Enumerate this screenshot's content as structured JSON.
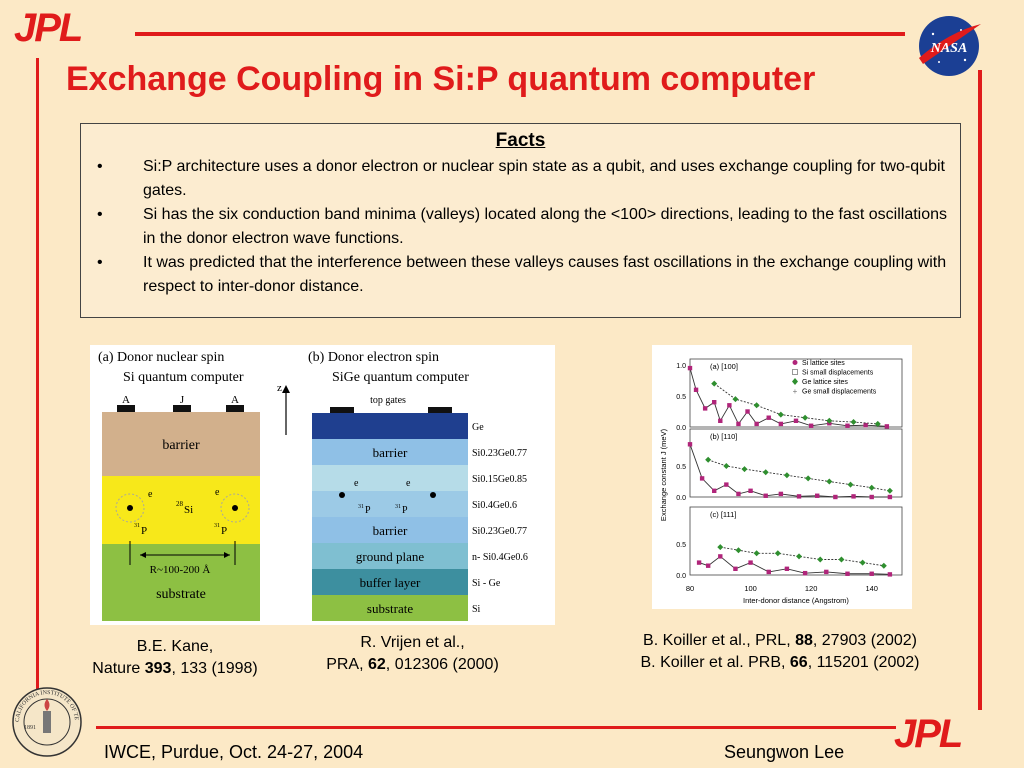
{
  "header": {
    "logo_left": "JPL",
    "logo_right": "NASA",
    "title": "Exchange Coupling in Si:P quantum computer"
  },
  "facts": {
    "heading": "Facts",
    "bullets": [
      "Si:P architecture uses a donor electron or nuclear spin state as a qubit, and uses exchange coupling for two-qubit gates.",
      "Si has the six conduction band minima (valleys) located along the <100> directions, leading to the fast oscillations in the donor electron wave functions.",
      "It was predicted that the interference between these valleys causes fast oscillations in the exchange coupling with respect to inter-donor distance."
    ]
  },
  "figure_a": {
    "title_line1": "(a) Donor nuclear spin",
    "title_line2": "Si quantum computer",
    "gates": [
      "A",
      "J",
      "A"
    ],
    "axis": "z",
    "barrier": "barrier",
    "electron": "e",
    "si_label": "Si",
    "si_mass": "28",
    "donor": "P",
    "donor_mass": "31",
    "distance": "R~100-200 Å",
    "substrate": "substrate",
    "colors": {
      "barrier": "#d2b08c",
      "si": "#f7e81a",
      "substrate": "#8dc043"
    }
  },
  "figure_b": {
    "title_line1": "(b) Donor electron spin",
    "title_line2": "SiGe quantum computer",
    "top_gates": "top gates",
    "layers": [
      {
        "name": "",
        "material": "Ge"
      },
      {
        "name": "barrier",
        "material": "Si0.23Ge0.77"
      },
      {
        "name": "",
        "material": "Si0.15Ge0.85"
      },
      {
        "name": "",
        "material": "Si0.4Ge0.6"
      },
      {
        "name": "barrier",
        "material": "Si0.23Ge0.77"
      },
      {
        "name": "ground plane",
        "material": "n- Si0.4Ge0.6"
      },
      {
        "name": "buffer layer",
        "material": "Si - Ge"
      },
      {
        "name": "substrate",
        "material": "Si"
      }
    ],
    "electron": "e",
    "donor": "P",
    "donor_mass": "31",
    "colors": [
      "#1f3f8f",
      "#8fc0e6",
      "#b6dce8",
      "#9ccae6",
      "#8fc0e6",
      "#7fbfd1",
      "#3d8f9f",
      "#8dc043"
    ]
  },
  "chart_data": {
    "type": "scatter",
    "panels": [
      "(a) [100]",
      "(b) [110]",
      "(c) [111]"
    ],
    "legend": [
      "Si lattice sites",
      "Si small displacements",
      "Ge lattice sites",
      "Ge small displacements"
    ],
    "xlabel": "Inter-donor distance (Angstrom)",
    "ylabel": "Exchange constant J (meV)",
    "xlim": [
      80,
      150
    ],
    "x_ticks": [
      "80",
      "100",
      "120",
      "140"
    ],
    "y_ticks": [
      "0.0",
      "0.5",
      "1.0"
    ],
    "series": [
      {
        "name": "Si lattice sites",
        "panel": 0,
        "x": [
          80,
          82,
          85,
          88,
          90,
          93,
          96,
          99,
          102,
          106,
          110,
          115,
          120,
          126,
          132,
          138,
          145
        ],
        "y": [
          0.95,
          0.6,
          0.3,
          0.4,
          0.1,
          0.35,
          0.05,
          0.25,
          0.05,
          0.15,
          0.05,
          0.1,
          0.02,
          0.06,
          0.02,
          0.03,
          0.01
        ]
      },
      {
        "name": "Ge lattice sites",
        "panel": 0,
        "x": [
          88,
          95,
          102,
          110,
          118,
          126,
          134,
          142
        ],
        "y": [
          0.7,
          0.45,
          0.35,
          0.2,
          0.15,
          0.1,
          0.08,
          0.05
        ]
      },
      {
        "name": "Si lattice sites",
        "panel": 1,
        "x": [
          80,
          84,
          88,
          92,
          96,
          100,
          105,
          110,
          116,
          122,
          128,
          134,
          140,
          146
        ],
        "y": [
          0.85,
          0.3,
          0.1,
          0.2,
          0.05,
          0.1,
          0.02,
          0.05,
          0.01,
          0.02,
          0.0,
          0.01,
          0.0,
          0.0
        ]
      },
      {
        "name": "Ge lattice sites",
        "panel": 1,
        "x": [
          86,
          92,
          98,
          105,
          112,
          119,
          126,
          133,
          140,
          146
        ],
        "y": [
          0.6,
          0.5,
          0.45,
          0.4,
          0.35,
          0.3,
          0.25,
          0.2,
          0.15,
          0.1
        ]
      },
      {
        "name": "Si lattice sites",
        "panel": 2,
        "x": [
          83,
          86,
          90,
          95,
          100,
          106,
          112,
          118,
          125,
          132,
          140,
          146
        ],
        "y": [
          0.2,
          0.15,
          0.3,
          0.1,
          0.2,
          0.05,
          0.1,
          0.03,
          0.05,
          0.02,
          0.02,
          0.01
        ]
      },
      {
        "name": "Ge lattice sites",
        "panel": 2,
        "x": [
          90,
          96,
          102,
          109,
          116,
          123,
          130,
          137,
          144
        ],
        "y": [
          0.45,
          0.4,
          0.35,
          0.35,
          0.3,
          0.25,
          0.25,
          0.2,
          0.15
        ]
      }
    ]
  },
  "citations": {
    "kane_line1": "B.E. Kane,",
    "kane_journal": "Nature ",
    "kane_vol": "393",
    "kane_rest": ", 133 (1998)",
    "vrijen_line1": "R. Vrijen et al.,",
    "vrijen_journal": "PRA, ",
    "vrijen_vol": "62",
    "vrijen_rest": ", 012306 (2000)",
    "koiller1_journal": "B. Koiller et al., PRL, ",
    "koiller1_vol": "88",
    "koiller1_rest": ", 27903 (2002)",
    "koiller2_journal": "B. Koiller et al. PRB, ",
    "koiller2_vol": "66",
    "koiller2_rest": ", 115201 (2002)"
  },
  "footer": {
    "event": "IWCE, Purdue, Oct. 24-27, 2004",
    "author": "Seungwon Lee",
    "seal_text": "CALIFORNIA INSTITUTE OF TECHNOLOGY",
    "seal_year": "1891",
    "logo": "JPL"
  },
  "colors": {
    "accent": "#e01b1b",
    "background": "#fce9c6",
    "nasa_blue": "#1b3f94"
  }
}
